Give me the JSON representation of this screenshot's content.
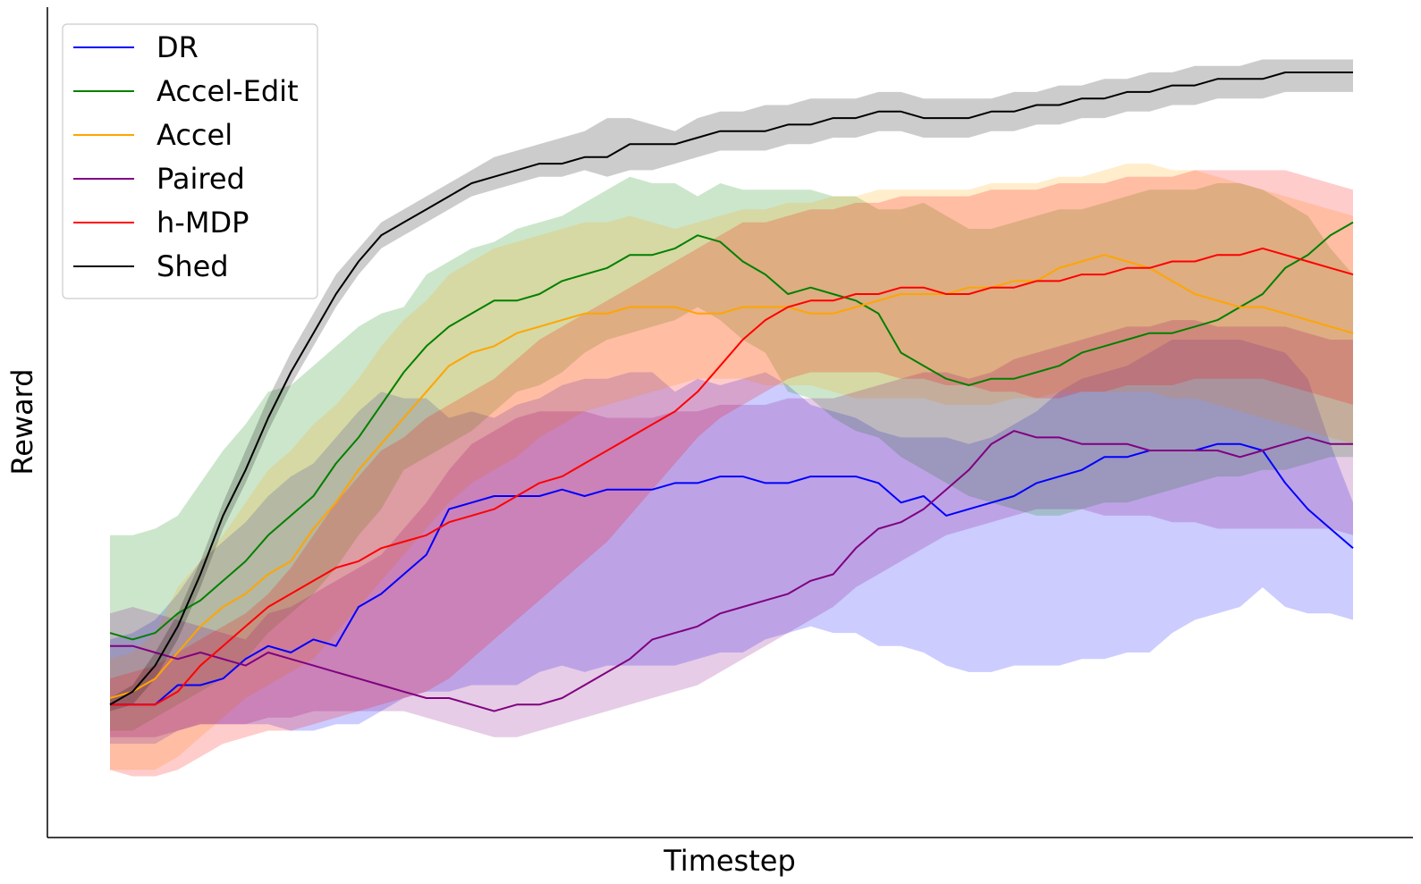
{
  "chart_data": {
    "type": "line",
    "title": "",
    "xlabel": "Timestep",
    "ylabel": "Reward",
    "xlim": [
      0,
      60
    ],
    "ylim": [
      0,
      100
    ],
    "show_ticks": false,
    "grid": false,
    "legend_position": "top-left",
    "series": [
      {
        "name": "DR",
        "color": "#0000ff",
        "fill_opacity": 0.2,
        "mean": [
          16,
          16,
          16,
          19,
          19,
          20,
          23,
          25,
          24,
          26,
          25,
          31,
          33,
          36,
          39,
          46,
          47,
          48,
          48,
          48,
          49,
          48,
          49,
          49,
          49,
          50,
          50,
          51,
          51,
          50,
          50,
          51,
          51,
          51,
          50,
          47,
          48,
          45,
          46,
          47,
          48,
          50,
          51,
          52,
          54,
          54,
          55,
          55,
          55,
          56,
          56,
          55,
          50,
          46,
          43,
          40
        ],
        "upper": [
          26,
          27,
          29,
          33,
          38,
          41,
          44,
          48,
          51,
          53,
          57,
          61,
          64,
          63,
          63,
          60,
          61,
          60,
          62,
          63,
          65,
          66,
          66,
          67,
          67,
          64,
          66,
          65,
          66,
          67,
          65,
          62,
          61,
          60,
          58,
          57,
          57,
          57,
          56,
          57,
          59,
          61,
          64,
          66,
          67,
          68,
          70,
          72,
          72,
          72,
          72,
          71,
          70,
          66,
          56,
          47
        ],
        "lower": [
          10,
          10,
          10,
          12,
          13,
          13,
          13,
          13,
          12,
          12,
          13,
          13,
          15,
          17,
          18,
          18,
          19,
          19,
          19,
          21,
          22,
          21,
          22,
          22,
          22,
          22,
          23,
          24,
          24,
          26,
          27,
          28,
          27,
          27,
          25,
          25,
          24,
          22,
          21,
          21,
          22,
          22,
          22,
          23,
          23,
          24,
          24,
          27,
          29,
          30,
          31,
          34,
          31,
          30,
          30,
          29
        ]
      },
      {
        "name": "Accel-Edit",
        "color": "#008000",
        "fill_opacity": 0.2,
        "mean": [
          27,
          26,
          27,
          30,
          32,
          35,
          38,
          42,
          45,
          48,
          53,
          57,
          62,
          67,
          71,
          74,
          76,
          78,
          78,
          79,
          81,
          82,
          83,
          85,
          85,
          86,
          88,
          87,
          84,
          82,
          79,
          80,
          79,
          78,
          76,
          70,
          68,
          66,
          65,
          66,
          66,
          67,
          68,
          70,
          71,
          72,
          73,
          73,
          74,
          75,
          77,
          79,
          83,
          85,
          88,
          90
        ],
        "upper": [
          42,
          42,
          43,
          45,
          50,
          55,
          59,
          64,
          65,
          68,
          71,
          74,
          76,
          77,
          82,
          84,
          86,
          87,
          89,
          90,
          91,
          93,
          95,
          97,
          96,
          96,
          94,
          96,
          95,
          95,
          95,
          95,
          94,
          94,
          92,
          92,
          93,
          91,
          89,
          89,
          90,
          91,
          92,
          92,
          93,
          94,
          95,
          95,
          95,
          96,
          96,
          95,
          93,
          91,
          86,
          82
        ],
        "lower": [
          12,
          12,
          14,
          16,
          18,
          20,
          23,
          27,
          30,
          33,
          37,
          42,
          46,
          52,
          54,
          56,
          58,
          61,
          64,
          65,
          67,
          70,
          72,
          73,
          74,
          75,
          77,
          75,
          72,
          70,
          64,
          63,
          60,
          58,
          57,
          54,
          52,
          50,
          48,
          47,
          46,
          45,
          45,
          46,
          47,
          47,
          48,
          49,
          50,
          51,
          51,
          52,
          52,
          53,
          54,
          54
        ]
      },
      {
        "name": "Accel",
        "color": "#ffa500",
        "fill_opacity": 0.2,
        "mean": [
          17,
          18,
          20,
          24,
          28,
          31,
          33,
          36,
          38,
          43,
          47,
          52,
          56,
          60,
          64,
          68,
          70,
          71,
          73,
          74,
          75,
          76,
          76,
          77,
          77,
          77,
          76,
          76,
          77,
          77,
          77,
          76,
          76,
          77,
          78,
          79,
          79,
          79,
          80,
          80,
          81,
          81,
          83,
          84,
          85,
          84,
          83,
          81,
          79,
          78,
          77,
          77,
          76,
          75,
          74,
          73
        ],
        "upper": [
          23,
          24,
          27,
          34,
          38,
          42,
          47,
          52,
          55,
          59,
          62,
          66,
          71,
          75,
          78,
          82,
          84,
          86,
          87,
          88,
          89,
          90,
          90,
          91,
          90,
          89,
          90,
          91,
          92,
          92,
          93,
          93,
          94,
          94,
          95,
          95,
          95,
          95,
          95,
          96,
          96,
          96,
          97,
          97,
          98,
          99,
          99,
          98,
          98,
          97,
          96,
          95,
          94,
          93,
          92,
          91
        ],
        "lower": [
          6,
          6,
          6,
          8,
          11,
          14,
          17,
          19,
          21,
          23,
          27,
          31,
          35,
          39,
          43,
          47,
          50,
          52,
          54,
          57,
          59,
          61,
          62,
          63,
          64,
          65,
          66,
          66,
          66,
          65,
          65,
          65,
          64,
          63,
          63,
          63,
          63,
          62,
          62,
          62,
          63,
          63,
          64,
          64,
          64,
          64,
          64,
          63,
          63,
          62,
          61,
          60,
          59,
          58,
          57,
          56
        ]
      },
      {
        "name": "Paired",
        "color": "#800080",
        "fill_opacity": 0.2,
        "mean": [
          25,
          25,
          24,
          23,
          24,
          23,
          22,
          24,
          23,
          22,
          21,
          20,
          19,
          18,
          17,
          17,
          16,
          15,
          16,
          16,
          17,
          19,
          21,
          23,
          26,
          27,
          28,
          30,
          31,
          32,
          33,
          35,
          36,
          40,
          43,
          44,
          46,
          49,
          52,
          56,
          58,
          57,
          57,
          56,
          56,
          56,
          55,
          55,
          55,
          55,
          54,
          55,
          56,
          57,
          56,
          56
        ],
        "upper": [
          30,
          31,
          30,
          29,
          28,
          27,
          26,
          30,
          31,
          33,
          35,
          37,
          39,
          43,
          47,
          52,
          56,
          58,
          60,
          61,
          61,
          61,
          60,
          60,
          60,
          61,
          61,
          62,
          62,
          62,
          63,
          63,
          63,
          64,
          65,
          66,
          67,
          67,
          66,
          67,
          69,
          70,
          71,
          72,
          73,
          74,
          74,
          75,
          75,
          74,
          74,
          74,
          74,
          73,
          72,
          72
        ],
        "lower": [
          11,
          11,
          11,
          12,
          13,
          13,
          13,
          14,
          14,
          15,
          15,
          15,
          15,
          15,
          14,
          13,
          12,
          11,
          11,
          12,
          13,
          14,
          15,
          16,
          17,
          18,
          19,
          21,
          23,
          25,
          27,
          29,
          31,
          34,
          36,
          38,
          40,
          42,
          43,
          44,
          45,
          46,
          46,
          46,
          45,
          45,
          45,
          44,
          44,
          43,
          43,
          43,
          43,
          43,
          43,
          42
        ]
      },
      {
        "name": "h-MDP",
        "color": "#ff0000",
        "fill_opacity": 0.2,
        "mean": [
          16,
          16,
          16,
          18,
          22,
          25,
          28,
          31,
          33,
          35,
          37,
          38,
          40,
          41,
          42,
          44,
          45,
          46,
          48,
          50,
          51,
          53,
          55,
          57,
          59,
          61,
          64,
          68,
          72,
          75,
          77,
          78,
          78,
          79,
          79,
          80,
          80,
          79,
          79,
          80,
          80,
          81,
          81,
          82,
          82,
          83,
          83,
          84,
          84,
          85,
          85,
          86,
          85,
          84,
          83,
          82
        ],
        "upper": [
          20,
          21,
          22,
          24,
          26,
          28,
          30,
          33,
          37,
          42,
          47,
          51,
          55,
          57,
          60,
          62,
          64,
          66,
          69,
          72,
          74,
          76,
          78,
          80,
          82,
          84,
          86,
          88,
          90,
          90,
          91,
          92,
          92,
          93,
          93,
          94,
          94,
          94,
          94,
          95,
          95,
          95,
          96,
          96,
          96,
          97,
          97,
          97,
          98,
          98,
          98,
          98,
          98,
          97,
          96,
          95
        ],
        "lower": [
          6,
          5,
          5,
          6,
          8,
          10,
          11,
          12,
          12,
          13,
          14,
          15,
          16,
          17,
          18,
          20,
          23,
          26,
          29,
          32,
          35,
          38,
          41,
          45,
          49,
          53,
          57,
          60,
          62,
          64,
          66,
          67,
          67,
          67,
          67,
          66,
          66,
          65,
          65,
          64,
          64,
          63,
          63,
          64,
          64,
          65,
          65,
          65,
          66,
          66,
          66,
          66,
          65,
          64,
          63,
          62
        ]
      },
      {
        "name": "Shed",
        "color": "#000000",
        "fill_opacity": 0.2,
        "mean": [
          16,
          18,
          22,
          28,
          36,
          45,
          52,
          60,
          67,
          73,
          79,
          84,
          88,
          90,
          92,
          94,
          96,
          97,
          98,
          99,
          99,
          100,
          100,
          102,
          102,
          102,
          103,
          104,
          104,
          104,
          105,
          105,
          106,
          106,
          107,
          107,
          106,
          106,
          106,
          107,
          107,
          108,
          108,
          109,
          109,
          110,
          110,
          111,
          111,
          112,
          112,
          112,
          113,
          113,
          113,
          113
        ],
        "upper": [
          17,
          19,
          24,
          30,
          38,
          47,
          55,
          63,
          70,
          76,
          82,
          86,
          90,
          92,
          94,
          96,
          98,
          100,
          101,
          102,
          103,
          104,
          106,
          106,
          105,
          104,
          106,
          107,
          107,
          108,
          108,
          109,
          109,
          109,
          110,
          110,
          109,
          109,
          109,
          109,
          110,
          110,
          111,
          111,
          112,
          112,
          113,
          113,
          114,
          114,
          114,
          115,
          115,
          115,
          115,
          115
        ],
        "lower": [
          15,
          16,
          20,
          26,
          34,
          43,
          50,
          58,
          65,
          71,
          77,
          82,
          86,
          88,
          90,
          92,
          94,
          95,
          96,
          97,
          97,
          98,
          97,
          98,
          98,
          99,
          100,
          101,
          101,
          101,
          102,
          102,
          103,
          103,
          104,
          104,
          103,
          103,
          103,
          104,
          104,
          105,
          105,
          106,
          106,
          107,
          107,
          108,
          108,
          109,
          109,
          109,
          110,
          110,
          110,
          110
        ]
      }
    ]
  },
  "legend": {
    "items": [
      "DR",
      "Accel-Edit",
      "Accel",
      "Paired",
      "h-MDP",
      "Shed"
    ]
  }
}
